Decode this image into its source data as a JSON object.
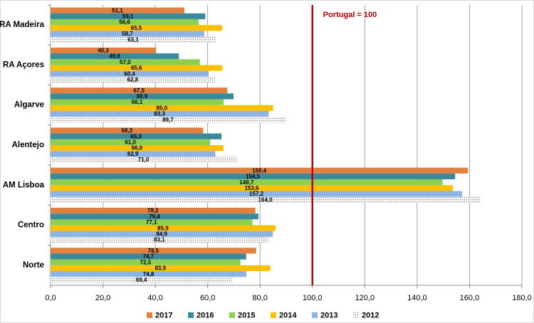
{
  "chart_data": {
    "type": "hbar",
    "categories": [
      "RA Madeira",
      "RA Açores",
      "Algarve",
      "Alentejo",
      "AM Lisboa",
      "Centro",
      "Norte"
    ],
    "series": [
      {
        "name": "2017",
        "color": "#e2813f",
        "values": [
          51.1,
          40.3,
          67.5,
          58.3,
          159.4,
          78.2,
          78.5
        ],
        "value_labels": [
          "51,1",
          "40,3",
          "67,5",
          "58,3",
          "159,4",
          "78,2",
          "78,5"
        ]
      },
      {
        "name": "2016",
        "color": "#3a8a9d",
        "values": [
          59.1,
          49.0,
          69.9,
          65.3,
          154.5,
          79.4,
          74.7
        ],
        "value_labels": [
          "59,1",
          "49,0",
          "69,9",
          "65,3",
          "154,5",
          "79,4",
          "74,7"
        ]
      },
      {
        "name": "2015",
        "color": "#8fcf50",
        "values": [
          56.6,
          57.0,
          66.1,
          61.0,
          149.7,
          77.1,
          72.5
        ],
        "value_labels": [
          "56,6",
          "57,0",
          "66,1",
          "61,0",
          "149,7",
          "77,1",
          "72,5"
        ]
      },
      {
        "name": "2014",
        "color": "#ffc000",
        "values": [
          65.5,
          65.6,
          85.0,
          66.0,
          153.6,
          85.9,
          83.9
        ],
        "value_labels": [
          "65,5",
          "65,6",
          "85,0",
          "66,0",
          "153,6",
          "85,9",
          "83,9"
        ]
      },
      {
        "name": "2013",
        "color": "#8db4e2",
        "values": [
          58.7,
          60.4,
          83.3,
          62.9,
          157.2,
          84.9,
          74.8
        ],
        "value_labels": [
          "58,7",
          "60,4",
          "83,3",
          "62,9",
          "157,2",
          "84,9",
          "74,8"
        ]
      },
      {
        "name": "2012",
        "color": "#9a9a9a",
        "pattern": "dots",
        "values": [
          63.1,
          62.8,
          89.7,
          71.0,
          164.0,
          83.1,
          69.4
        ],
        "value_labels": [
          "63,1",
          "62,8",
          "89,7",
          "71,0",
          "164,0",
          "83,1",
          "69,4"
        ]
      }
    ],
    "xlim": [
      0,
      180
    ],
    "xticks": [
      {
        "value": 0,
        "label": "0,0"
      },
      {
        "value": 20,
        "label": "20,0"
      },
      {
        "value": 40,
        "label": "40,0"
      },
      {
        "value": 60,
        "label": "60,0"
      },
      {
        "value": 80,
        "label": "80,0"
      },
      {
        "value": 100,
        "label": "100,0"
      },
      {
        "value": 120,
        "label": "120,0"
      },
      {
        "value": 140,
        "label": "140,0"
      },
      {
        "value": 160,
        "label": "160,0"
      },
      {
        "value": 180,
        "label": "180,0"
      }
    ],
    "grid": true,
    "legend": "bottom",
    "reference_line": {
      "value": 100,
      "label": "Portugal = 100",
      "color": "#c00000"
    }
  }
}
